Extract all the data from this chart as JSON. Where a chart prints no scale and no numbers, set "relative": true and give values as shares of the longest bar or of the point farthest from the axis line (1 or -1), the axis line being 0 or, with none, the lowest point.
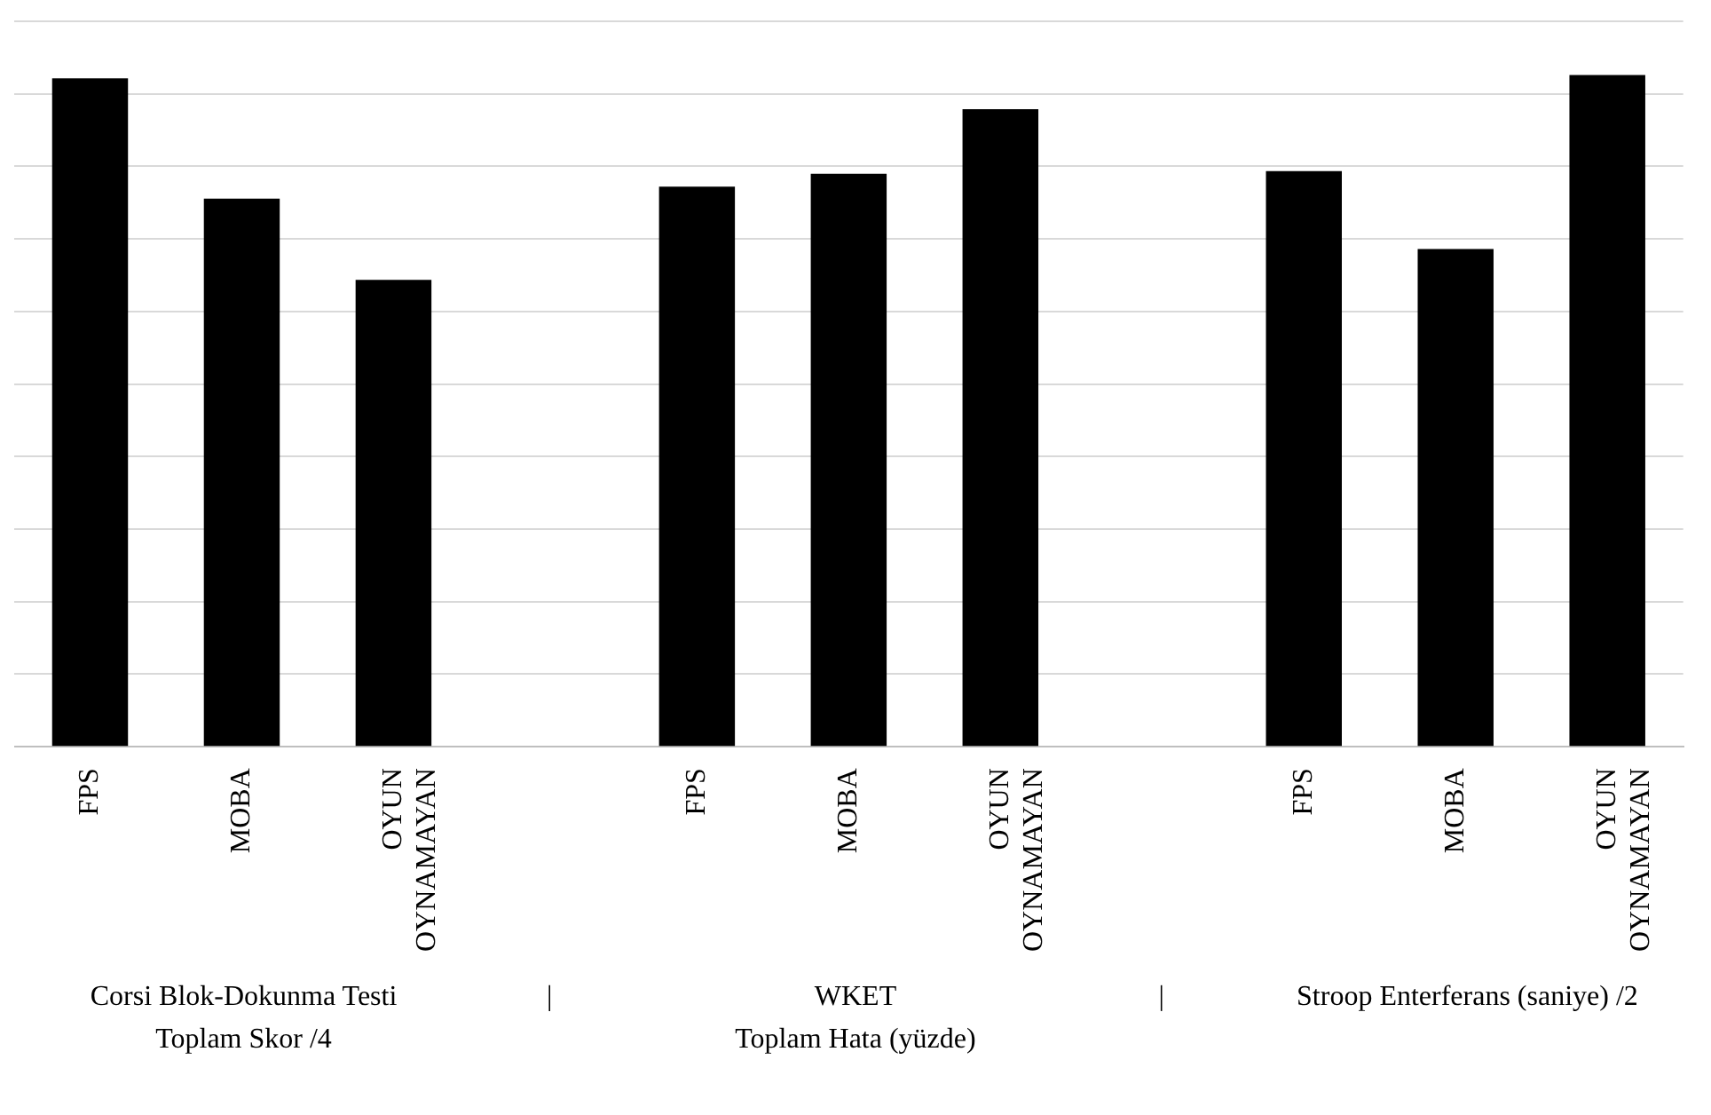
{
  "chart_data": {
    "type": "bar",
    "relative": true,
    "categories": [
      "FPS",
      "MOBA",
      "OYUN OYNAMAYAN",
      null,
      "FPS",
      "MOBA",
      "OYUN OYNAMAYAN",
      null,
      "FPS",
      "MOBA",
      "OYUN OYNAMAYAN"
    ],
    "values": [
      0.995,
      0.816,
      0.695,
      null,
      0.834,
      0.853,
      0.949,
      null,
      0.857,
      0.741,
      1
    ],
    "color": "#000000",
    "grid": "y",
    "annotations": [
      "Corsi Blok-Dokunma Testi\nToplam Skor /4",
      "|",
      "WKET\nToplam Hata (yüzde)",
      "|",
      "Stroop Enterferans (saniye) /2"
    ]
  }
}
